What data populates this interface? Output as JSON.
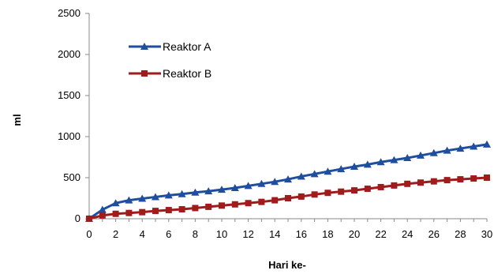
{
  "chart_data": {
    "type": "line",
    "xlabel": "Hari ke-",
    "ylabel": "ml",
    "xlim": [
      0,
      30
    ],
    "ylim": [
      0,
      2500
    ],
    "x_ticks": [
      "0",
      "2",
      "4",
      "6",
      "8",
      "10",
      "12",
      "14",
      "16",
      "18",
      "20",
      "22",
      "24",
      "26",
      "28",
      "30"
    ],
    "y_ticks": [
      "0",
      "500",
      "1000",
      "1500",
      "2000",
      "2500"
    ],
    "grid": false,
    "legend_position": "top-left",
    "x": [
      0,
      1,
      2,
      3,
      4,
      5,
      6,
      7,
      8,
      9,
      10,
      11,
      12,
      13,
      14,
      15,
      16,
      17,
      18,
      19,
      20,
      21,
      22,
      23,
      24,
      25,
      26,
      27,
      28,
      29,
      30
    ],
    "series": [
      {
        "name": "Reaktor A",
        "color": "#1F4E9E",
        "marker": "triangle",
        "values": [
          0,
          110,
          190,
          225,
          245,
          265,
          285,
          300,
          320,
          335,
          355,
          375,
          400,
          425,
          450,
          480,
          515,
          545,
          575,
          605,
          635,
          660,
          690,
          715,
          740,
          770,
          800,
          830,
          855,
          880,
          905
        ]
      },
      {
        "name": "Reaktor B",
        "color": "#A01C1C",
        "marker": "square",
        "values": [
          0,
          40,
          60,
          70,
          80,
          95,
          105,
          115,
          130,
          145,
          160,
          175,
          190,
          205,
          225,
          250,
          270,
          295,
          315,
          330,
          345,
          365,
          385,
          405,
          425,
          440,
          455,
          470,
          480,
          490,
          500
        ]
      }
    ]
  }
}
